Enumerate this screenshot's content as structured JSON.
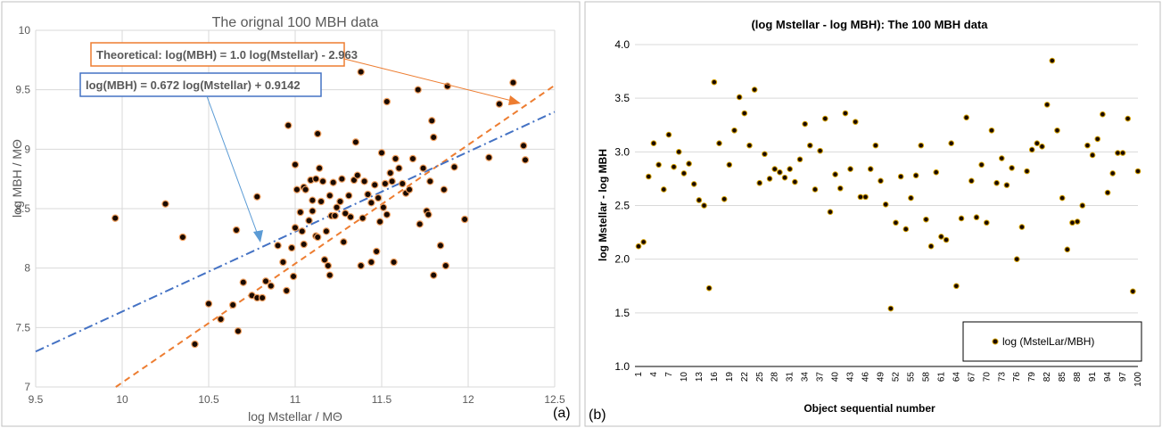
{
  "chart_data": [
    {
      "type": "scatter",
      "panel_label": "(a)",
      "title": "The orignal 100 MBH data",
      "xlabel": "log Mstellar / MΘ",
      "ylabel": "log MBH / MΘ",
      "xlim": [
        9.5,
        12.5
      ],
      "ylim": [
        7,
        10
      ],
      "xticks": [
        "9.5",
        "10",
        "10.5",
        "11",
        "11.5",
        "12",
        "12.5"
      ],
      "yticks": [
        "7",
        "7.5",
        "8",
        "8.5",
        "9",
        "9.5",
        "10"
      ],
      "grid": true,
      "point_color": "#1a0a00",
      "point_edge": "#f0a060",
      "lines": [
        {
          "label": "Theoretical: log(MBH) = 1.0 log(Mstellar) - 2.963",
          "slope": 1.0,
          "intercept": -2.963,
          "color": "#ed7d31",
          "style": "dashed",
          "box_color": "#ed7d31"
        },
        {
          "label": "log(MBH) = 0.672 log(Mstellar)  + 0.9142",
          "slope": 0.672,
          "intercept": 0.9142,
          "color": "#4472c4",
          "style": "dashdot",
          "box_color": "#4472c4"
        }
      ],
      "points": [
        [
          9.96,
          8.42
        ],
        [
          10.25,
          8.54
        ],
        [
          10.35,
          8.26
        ],
        [
          10.42,
          7.36
        ],
        [
          10.5,
          7.7
        ],
        [
          10.57,
          7.57
        ],
        [
          10.64,
          7.69
        ],
        [
          10.66,
          8.32
        ],
        [
          10.67,
          7.47
        ],
        [
          10.7,
          7.88
        ],
        [
          10.75,
          7.77
        ],
        [
          10.78,
          7.75
        ],
        [
          10.78,
          8.6
        ],
        [
          10.81,
          7.75
        ],
        [
          10.83,
          7.89
        ],
        [
          10.86,
          7.85
        ],
        [
          10.9,
          8.19
        ],
        [
          10.93,
          8.05
        ],
        [
          10.95,
          7.81
        ],
        [
          10.96,
          9.2
        ],
        [
          10.98,
          8.17
        ],
        [
          10.99,
          7.93
        ],
        [
          11.0,
          8.34
        ],
        [
          11.0,
          8.87
        ],
        [
          11.01,
          8.66
        ],
        [
          11.03,
          8.47
        ],
        [
          11.04,
          8.31
        ],
        [
          11.05,
          8.2
        ],
        [
          11.05,
          8.68
        ],
        [
          11.06,
          8.66
        ],
        [
          11.08,
          8.4
        ],
        [
          11.09,
          8.74
        ],
        [
          11.1,
          8.57
        ],
        [
          11.1,
          8.48
        ],
        [
          11.12,
          8.27
        ],
        [
          11.12,
          8.75
        ],
        [
          11.13,
          8.26
        ],
        [
          11.13,
          9.13
        ],
        [
          11.14,
          8.84
        ],
        [
          11.15,
          8.56
        ],
        [
          11.16,
          8.73
        ],
        [
          11.17,
          8.07
        ],
        [
          11.18,
          8.31
        ],
        [
          11.19,
          8.02
        ],
        [
          11.2,
          8.61
        ],
        [
          11.2,
          7.94
        ],
        [
          11.21,
          8.44
        ],
        [
          11.22,
          8.72
        ],
        [
          11.23,
          8.44
        ],
        [
          11.24,
          8.51
        ],
        [
          11.26,
          8.56
        ],
        [
          11.27,
          8.75
        ],
        [
          11.28,
          8.22
        ],
        [
          11.29,
          8.46
        ],
        [
          11.31,
          8.61
        ],
        [
          11.32,
          8.43
        ],
        [
          11.34,
          8.74
        ],
        [
          11.35,
          9.06
        ],
        [
          11.36,
          8.78
        ],
        [
          11.38,
          8.02
        ],
        [
          11.38,
          9.65
        ],
        [
          11.39,
          8.42
        ],
        [
          11.4,
          8.73
        ],
        [
          11.42,
          8.62
        ],
        [
          11.44,
          8.55
        ],
        [
          11.44,
          8.05
        ],
        [
          11.46,
          8.7
        ],
        [
          11.47,
          8.14
        ],
        [
          11.48,
          8.59
        ],
        [
          11.49,
          8.39
        ],
        [
          11.5,
          8.97
        ],
        [
          11.51,
          8.51
        ],
        [
          11.52,
          8.71
        ],
        [
          11.53,
          8.45
        ],
        [
          11.53,
          9.4
        ],
        [
          11.55,
          8.8
        ],
        [
          11.56,
          8.73
        ],
        [
          11.57,
          8.05
        ],
        [
          11.58,
          8.92
        ],
        [
          11.6,
          8.84
        ],
        [
          11.62,
          8.71
        ],
        [
          11.64,
          8.63
        ],
        [
          11.66,
          8.66
        ],
        [
          11.68,
          8.92
        ],
        [
          11.71,
          9.5
        ],
        [
          11.72,
          8.37
        ],
        [
          11.74,
          8.84
        ],
        [
          11.76,
          8.48
        ],
        [
          11.77,
          8.45
        ],
        [
          11.78,
          8.73
        ],
        [
          11.79,
          9.24
        ],
        [
          11.8,
          9.1
        ],
        [
          11.8,
          7.94
        ],
        [
          11.84,
          8.19
        ],
        [
          11.86,
          8.66
        ],
        [
          11.87,
          8.02
        ],
        [
          11.88,
          9.53
        ],
        [
          11.92,
          8.85
        ],
        [
          11.98,
          8.41
        ],
        [
          12.12,
          8.93
        ],
        [
          12.18,
          9.38
        ],
        [
          12.26,
          9.56
        ],
        [
          12.32,
          9.03
        ],
        [
          12.33,
          8.91
        ]
      ]
    },
    {
      "type": "scatter",
      "panel_label": "(b)",
      "title": "(log Mstellar - log MBH): The 100 MBH data",
      "xlabel": "Object sequential number",
      "ylabel": "log Mstellar - log MBH",
      "ylim": [
        1.0,
        4.0
      ],
      "yticks": [
        "1.0",
        "1.5",
        "2.0",
        "2.5",
        "3.0",
        "3.5",
        "4.0"
      ],
      "xlim": [
        1,
        100
      ],
      "xticks": [
        "1",
        "4",
        "7",
        "10",
        "13",
        "16",
        "19",
        "22",
        "25",
        "28",
        "31",
        "34",
        "37",
        "40",
        "43",
        "46",
        "49",
        "52",
        "55",
        "58",
        "61",
        "64",
        "67",
        "70",
        "73",
        "76",
        "79",
        "82",
        "85",
        "88",
        "91",
        "94",
        "97",
        "100"
      ],
      "grid": true,
      "legend": {
        "position": "bottom-right",
        "label": "log (MstelLar/MBH)"
      },
      "point_color": "#1a0a00",
      "point_edge": "#d4a000",
      "values": [
        2.12,
        2.16,
        2.77,
        3.08,
        2.88,
        2.65,
        3.16,
        2.86,
        3.0,
        2.8,
        2.89,
        2.7,
        2.55,
        2.5,
        1.73,
        3.65,
        3.08,
        2.56,
        2.88,
        3.2,
        3.51,
        3.36,
        3.06,
        3.58,
        2.71,
        2.98,
        2.75,
        2.84,
        2.81,
        2.76,
        2.84,
        2.72,
        2.93,
        3.26,
        3.06,
        2.65,
        3.01,
        3.31,
        2.44,
        2.79,
        2.66,
        3.36,
        2.84,
        3.28,
        2.58,
        2.58,
        2.84,
        3.06,
        2.73,
        2.51,
        1.54,
        2.34,
        2.77,
        2.28,
        2.57,
        2.78,
        3.06,
        2.37,
        2.12,
        2.81,
        2.21,
        2.18,
        3.08,
        1.75,
        2.38,
        3.32,
        2.73,
        2.39,
        2.88,
        2.34,
        3.2,
        2.71,
        2.94,
        2.69,
        2.85,
        2.0,
        2.3,
        2.82,
        3.02,
        3.08,
        3.05,
        3.44,
        3.85,
        3.2,
        2.57,
        2.09,
        2.34,
        2.35,
        2.5,
        3.06,
        2.97,
        3.12,
        3.35,
        2.62,
        2.8,
        2.99,
        2.99,
        3.31,
        1.7,
        2.82
      ]
    }
  ]
}
